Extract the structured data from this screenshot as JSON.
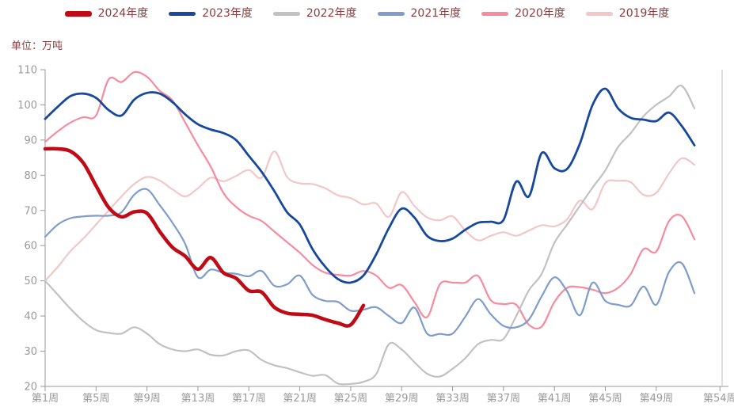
{
  "unit_label": "单位：万吨",
  "legend": {
    "note": "legend items derive from chart_data.series"
  },
  "axis_style": {
    "line_color": "#999999",
    "text_color": "#999999",
    "right_border_color": "#bbbbbb"
  },
  "chart_data": {
    "type": "line",
    "title": "",
    "xlabel": "",
    "ylabel": "万吨",
    "ylim": [
      20,
      110
    ],
    "y_ticks": [
      20,
      30,
      40,
      50,
      60,
      70,
      80,
      90,
      100,
      110
    ],
    "x_tick_weeks": [
      1,
      5,
      9,
      13,
      17,
      21,
      25,
      29,
      33,
      37,
      41,
      45,
      49,
      54
    ],
    "x_tick_labels": [
      "第1周",
      "第5周",
      "第9周",
      "第13周",
      "第17周",
      "第21周",
      "第25周",
      "第29周",
      "第33周",
      "第37周",
      "第41周",
      "第45周",
      "第49周",
      "第54周"
    ],
    "x_axis_max_week": 54,
    "grid": false,
    "legend_position": "top-center",
    "series": [
      {
        "name": "2019年度",
        "color": "#f3c6c8",
        "line_width": 2.2,
        "start_week": 1,
        "values": [
          50,
          54,
          58.5,
          62,
          66,
          70,
          74,
          77.5,
          79.5,
          78.5,
          76,
          74,
          76.3,
          79.3,
          78.3,
          79.8,
          81.5,
          79.3,
          86.8,
          79.5,
          77.7,
          77.5,
          76.3,
          74.3,
          73.5,
          71.7,
          72,
          68.2,
          75.2,
          71.3,
          68,
          67.2,
          68.3,
          64.3,
          61.5,
          62.8,
          63.8,
          62.8,
          64.3,
          65.8,
          65.5,
          67.5,
          72.8,
          70.4,
          77.8,
          78.4,
          78,
          74.4,
          75,
          80.5,
          84.8,
          83
        ]
      },
      {
        "name": "2020年度",
        "color": "#f78b9d",
        "line_width": 2.2,
        "start_week": 1,
        "values": [
          89.5,
          92.5,
          95,
          96.5,
          97,
          107.3,
          106.5,
          109.3,
          108,
          104,
          101.3,
          95,
          88.5,
          82.5,
          75,
          71,
          68.5,
          67,
          64,
          61,
          58,
          54.5,
          52.3,
          51.7,
          51.5,
          52.8,
          51.5,
          48,
          48.8,
          44,
          39.7,
          49,
          49.5,
          49.5,
          51.4,
          44.5,
          43.4,
          43.2,
          37.5,
          37,
          44,
          48,
          48.2,
          47.5,
          46.5,
          48,
          52,
          59,
          58.3,
          67,
          68.4,
          61.8
        ]
      },
      {
        "name": "2022年度",
        "color": "#c1c1c1",
        "line_width": 2.2,
        "start_week": 1,
        "values": [
          50,
          46,
          42,
          38.5,
          36,
          35.2,
          35,
          36.8,
          35,
          32,
          30.5,
          30,
          30.5,
          29,
          28.8,
          30,
          30.2,
          27.5,
          26,
          25.2,
          24,
          23,
          23.2,
          20.8,
          20.7,
          21.3,
          23.5,
          32,
          30.5,
          26.9,
          23.6,
          22.8,
          25,
          28,
          32,
          33.2,
          33.5,
          40,
          47.3,
          52,
          60.8,
          66,
          71.3,
          76.5,
          81.4,
          88,
          92,
          96.8,
          100,
          102.4,
          105.4,
          99
        ]
      },
      {
        "name": "2021年度",
        "color": "#7e9dcb",
        "line_width": 2.2,
        "start_week": 1,
        "values": [
          62.5,
          66,
          67.8,
          68.3,
          68.5,
          68.5,
          69.5,
          74.5,
          76,
          71.5,
          66.5,
          60.5,
          51,
          53.2,
          52.3,
          52,
          51.3,
          52.8,
          48.6,
          49,
          51.5,
          46,
          44.3,
          44,
          41.5,
          41.8,
          42.5,
          40,
          38,
          42.4,
          35,
          34.9,
          35,
          39.8,
          44.8,
          40.5,
          37.2,
          36.8,
          39,
          45.6,
          51,
          47,
          40.2,
          49.5,
          44.3,
          43.2,
          43,
          48.4,
          43.2,
          52.5,
          55,
          46.5
        ]
      },
      {
        "name": "2023年度",
        "color": "#17489c",
        "line_width": 2.8,
        "start_week": 1,
        "values": [
          96,
          99.5,
          102.5,
          103.2,
          102,
          98.5,
          97,
          101.5,
          103.4,
          103.2,
          100.8,
          97.3,
          94.5,
          93,
          92,
          90,
          85.5,
          81,
          75.5,
          69.5,
          66,
          59,
          54,
          50.5,
          49.5,
          51.5,
          57.5,
          65,
          70.5,
          68,
          62.8,
          61.3,
          62,
          64.5,
          66.5,
          66.8,
          67.3,
          78.2,
          74,
          86.3,
          82,
          81.8,
          89,
          100,
          104.6,
          99,
          96.3,
          95.8,
          95.4,
          97.8,
          94,
          88.5
        ]
      },
      {
        "name": "2024年度",
        "color": "#c00a15",
        "line_width": 4.5,
        "start_week": 1,
        "values": [
          87.5,
          87.5,
          86.8,
          83.5,
          77,
          70.8,
          68.2,
          69.6,
          69.2,
          64,
          59.5,
          57,
          53.3,
          56.6,
          52.3,
          50.7,
          47.2,
          46.8,
          42.5,
          40.8,
          40.5,
          40.2,
          39,
          38,
          37.5,
          43
        ]
      }
    ],
    "legend_order": [
      "2024年度",
      "2023年度",
      "2022年度",
      "2021年度",
      "2020年度",
      "2019年度"
    ]
  }
}
